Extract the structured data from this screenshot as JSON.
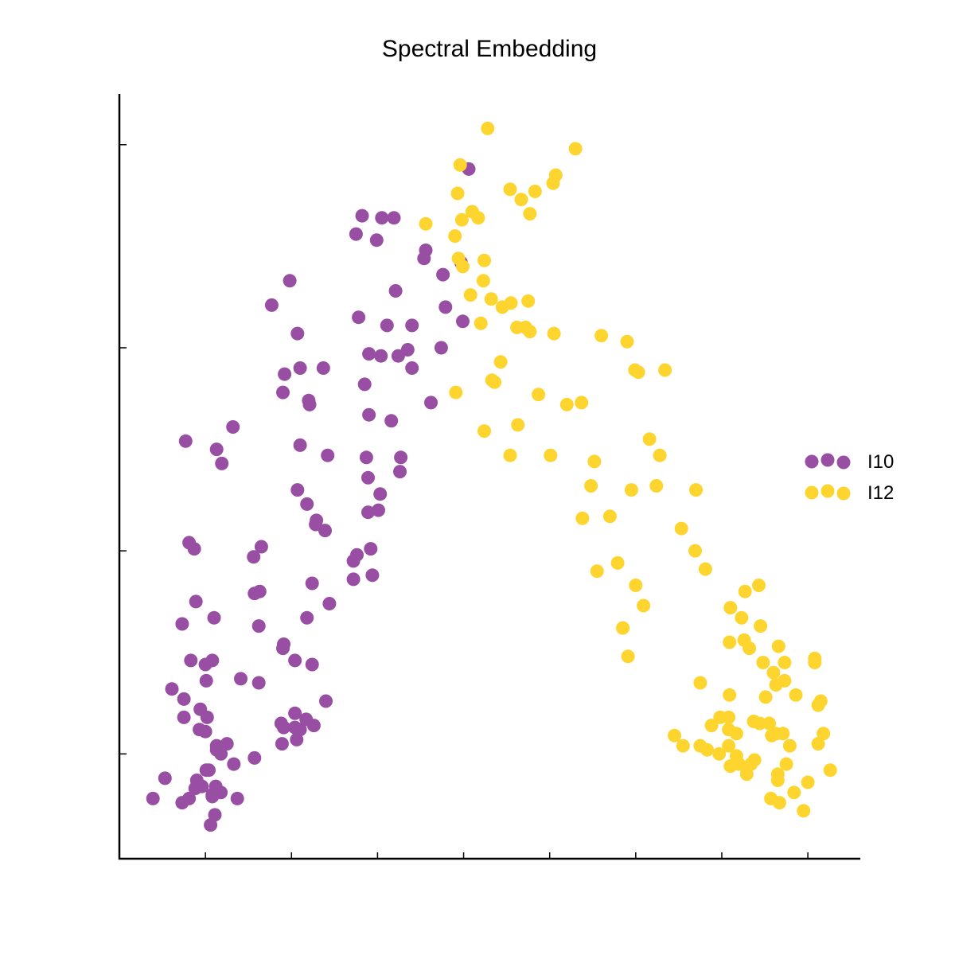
{
  "chart_data": {
    "type": "scatter",
    "title": "Spectral Embedding",
    "xlabel": "",
    "ylabel": "",
    "xlim": [
      -0.2,
      8.4
    ],
    "ylim": [
      -0.52,
      3.25
    ],
    "x_ticks": [
      0.8,
      1.8,
      2.8,
      3.8,
      4.8,
      5.8,
      6.8,
      7.8
    ],
    "y_ticks": [
      0,
      1,
      2,
      3
    ],
    "grid": false,
    "legend_position": "right",
    "series": [
      {
        "name": "I10",
        "color": "#984ea3",
        "points": [
          [
            0.19,
            -0.22
          ],
          [
            0.53,
            -0.24
          ],
          [
            0.61,
            -0.22
          ],
          [
            0.81,
            -0.08
          ],
          [
            0.76,
            -0.16
          ],
          [
            0.7,
            -0.13
          ],
          [
            0.88,
            -0.21
          ],
          [
            0.86,
            -0.35
          ],
          [
            0.91,
            -0.3
          ],
          [
            0.98,
            -0.19
          ],
          [
            0.84,
            -0.08
          ],
          [
            0.88,
            -0.2
          ],
          [
            0.92,
            -0.16
          ],
          [
            0.68,
            -0.17
          ],
          [
            1.17,
            -0.22
          ],
          [
            1.13,
            -0.05
          ],
          [
            1.05,
            0.05
          ],
          [
            0.98,
            0.0
          ],
          [
            0.93,
            0.04
          ],
          [
            0.73,
            0.12
          ],
          [
            0.93,
            0.02
          ],
          [
            0.8,
            0.11
          ],
          [
            0.82,
            0.18
          ],
          [
            0.74,
            0.22
          ],
          [
            0.55,
            0.18
          ],
          [
            0.55,
            0.27
          ],
          [
            0.81,
            0.36
          ],
          [
            0.41,
            0.32
          ],
          [
            0.33,
            -0.12
          ],
          [
            1.37,
            -0.02
          ],
          [
            1.69,
            0.05
          ],
          [
            1.84,
            0.2
          ],
          [
            1.68,
            0.15
          ],
          [
            1.71,
            0.13
          ],
          [
            1.86,
            0.07
          ],
          [
            1.84,
            0.13
          ],
          [
            1.9,
            0.12
          ],
          [
            2.06,
            0.14
          ],
          [
            1.97,
            0.17
          ],
          [
            2.2,
            0.26
          ],
          [
            1.84,
            0.46
          ],
          [
            2.04,
            0.44
          ],
          [
            1.42,
            0.35
          ],
          [
            1.7,
            0.52
          ],
          [
            1.71,
            0.54
          ],
          [
            0.63,
            0.46
          ],
          [
            0.8,
            0.44
          ],
          [
            1.42,
            0.63
          ],
          [
            1.21,
            0.37
          ],
          [
            0.88,
            0.46
          ],
          [
            0.9,
            0.67
          ],
          [
            0.69,
            0.75
          ],
          [
            0.53,
            0.64
          ],
          [
            1.37,
            0.79
          ],
          [
            1.43,
            0.8
          ],
          [
            0.67,
            1.01
          ],
          [
            0.61,
            1.04
          ],
          [
            1.36,
            0.97
          ],
          [
            1.45,
            1.02
          ],
          [
            2.04,
            0.84
          ],
          [
            1.98,
            0.67
          ],
          [
            2.24,
            0.74
          ],
          [
            2.52,
            0.86
          ],
          [
            2.74,
            0.88
          ],
          [
            2.52,
            0.95
          ],
          [
            2.56,
            0.98
          ],
          [
            2.72,
            1.01
          ],
          [
            2.69,
            1.19
          ],
          [
            2.08,
            1.13
          ],
          [
            2.19,
            1.1
          ],
          [
            2.81,
            1.2
          ],
          [
            2.69,
            1.36
          ],
          [
            2.67,
            1.46
          ],
          [
            2.83,
            1.28
          ],
          [
            2.7,
            1.67
          ],
          [
            2.65,
            1.82
          ],
          [
            3.06,
            1.39
          ],
          [
            3.07,
            1.46
          ],
          [
            2.96,
            1.64
          ],
          [
            2.84,
            1.96
          ],
          [
            3.42,
            1.73
          ],
          [
            3.2,
            1.9
          ],
          [
            3.04,
            1.96
          ],
          [
            2.7,
            1.97
          ],
          [
            3.15,
            1.99
          ],
          [
            3.79,
            2.13
          ],
          [
            3.59,
            2.2
          ],
          [
            3.77,
            2.42
          ],
          [
            3.86,
            2.88
          ],
          [
            0.99,
            1.43
          ],
          [
            1.12,
            1.61
          ],
          [
            0.57,
            1.54
          ],
          [
            0.93,
            1.5
          ],
          [
            1.7,
            1.78
          ],
          [
            1.87,
            1.3
          ],
          [
            1.9,
            1.52
          ],
          [
            1.72,
            1.87
          ],
          [
            2.0,
            1.74
          ],
          [
            1.9,
            1.9
          ],
          [
            2.09,
            1.15
          ],
          [
            1.98,
            1.23
          ],
          [
            2.22,
            1.47
          ],
          [
            1.57,
            2.21
          ],
          [
            1.87,
            2.07
          ],
          [
            2.01,
            1.72
          ],
          [
            2.17,
            1.9
          ],
          [
            2.62,
            2.65
          ],
          [
            2.85,
            2.64
          ],
          [
            3.36,
            2.48
          ],
          [
            3.34,
            2.44
          ],
          [
            3.56,
            2.36
          ],
          [
            1.78,
            2.33
          ],
          [
            2.55,
            2.56
          ],
          [
            2.79,
            2.53
          ],
          [
            2.58,
            2.15
          ],
          [
            2.91,
            2.11
          ],
          [
            2.99,
            2.64
          ],
          [
            3.01,
            2.28
          ],
          [
            3.2,
            2.11
          ],
          [
            3.54,
            2.0
          ]
        ]
      },
      {
        "name": "I12",
        "color": "#fed52f",
        "points": [
          [
            4.08,
            3.08
          ],
          [
            3.76,
            2.9
          ],
          [
            3.73,
            2.76
          ],
          [
            3.78,
            2.63
          ],
          [
            3.9,
            2.67
          ],
          [
            3.97,
            2.64
          ],
          [
            3.7,
            2.55
          ],
          [
            3.36,
            2.61
          ],
          [
            4.34,
            2.78
          ],
          [
            4.63,
            2.77
          ],
          [
            4.47,
            2.73
          ],
          [
            4.57,
            2.66
          ],
          [
            4.84,
            2.81
          ],
          [
            4.87,
            2.85
          ],
          [
            5.1,
            2.98
          ],
          [
            3.74,
            2.44
          ],
          [
            3.79,
            2.4
          ],
          [
            4.0,
            2.12
          ],
          [
            4.04,
            2.43
          ],
          [
            3.88,
            2.26
          ],
          [
            4.03,
            2.33
          ],
          [
            4.12,
            2.24
          ],
          [
            4.25,
            2.2
          ],
          [
            4.35,
            2.22
          ],
          [
            4.55,
            2.23
          ],
          [
            4.42,
            2.1
          ],
          [
            4.52,
            2.1
          ],
          [
            4.57,
            2.08
          ],
          [
            4.85,
            2.07
          ],
          [
            5.4,
            2.06
          ],
          [
            5.7,
            2.03
          ],
          [
            5.79,
            1.89
          ],
          [
            5.83,
            1.88
          ],
          [
            6.14,
            1.89
          ],
          [
            4.23,
            1.93
          ],
          [
            4.16,
            1.83
          ],
          [
            4.13,
            1.84
          ],
          [
            4.67,
            1.77
          ],
          [
            5.0,
            1.72
          ],
          [
            5.17,
            1.73
          ],
          [
            3.71,
            1.78
          ],
          [
            4.04,
            1.59
          ],
          [
            4.43,
            1.62
          ],
          [
            4.34,
            1.47
          ],
          [
            4.81,
            1.47
          ],
          [
            5.32,
            1.44
          ],
          [
            6.08,
            1.47
          ],
          [
            5.96,
            1.55
          ],
          [
            6.04,
            1.32
          ],
          [
            5.75,
            1.3
          ],
          [
            6.5,
            1.3
          ],
          [
            5.28,
            1.32
          ],
          [
            5.5,
            1.17
          ],
          [
            5.18,
            1.16
          ],
          [
            6.33,
            1.11
          ],
          [
            6.49,
            1.0
          ],
          [
            6.61,
            0.91
          ],
          [
            5.8,
            0.83
          ],
          [
            5.35,
            0.9
          ],
          [
            5.59,
            0.94
          ],
          [
            5.89,
            0.73
          ],
          [
            7.07,
            0.8
          ],
          [
            7.23,
            0.83
          ],
          [
            6.9,
            0.72
          ],
          [
            7.03,
            0.67
          ],
          [
            7.25,
            0.63
          ],
          [
            5.65,
            0.62
          ],
          [
            6.89,
            0.55
          ],
          [
            7.06,
            0.56
          ],
          [
            7.46,
            0.53
          ],
          [
            5.71,
            0.48
          ],
          [
            6.89,
            0.29
          ],
          [
            7.12,
            0.52
          ],
          [
            7.28,
            0.45
          ],
          [
            7.31,
            0.28
          ],
          [
            7.43,
            0.34
          ],
          [
            7.53,
            0.45
          ],
          [
            7.66,
            0.29
          ],
          [
            7.88,
            0.45
          ],
          [
            7.88,
            0.47
          ],
          [
            7.4,
            0.4
          ],
          [
            7.53,
            0.36
          ],
          [
            7.43,
            0.1
          ],
          [
            7.51,
            0.1
          ],
          [
            7.24,
            0.15
          ],
          [
            6.97,
            0.1
          ],
          [
            6.78,
            0.18
          ],
          [
            6.68,
            0.14
          ],
          [
            6.88,
            0.18
          ],
          [
            6.55,
            0.04
          ],
          [
            6.63,
            0.02
          ],
          [
            6.77,
            0.0
          ],
          [
            6.88,
            0.04
          ],
          [
            6.97,
            -0.01
          ],
          [
            6.88,
            0.12
          ],
          [
            7.09,
            -0.1
          ],
          [
            7.14,
            -0.05
          ],
          [
            7.18,
            -0.03
          ],
          [
            7.0,
            -0.05
          ],
          [
            6.9,
            -0.06
          ],
          [
            7.17,
            0.16
          ],
          [
            7.35,
            0.15
          ],
          [
            7.38,
            0.09
          ],
          [
            7.59,
            0.04
          ],
          [
            7.55,
            -0.05
          ],
          [
            7.45,
            -0.1
          ],
          [
            7.37,
            -0.22
          ],
          [
            7.45,
            -0.13
          ],
          [
            7.47,
            -0.24
          ],
          [
            7.64,
            -0.19
          ],
          [
            7.8,
            -0.14
          ],
          [
            7.75,
            -0.28
          ],
          [
            7.92,
            0.05
          ],
          [
            7.92,
            0.24
          ],
          [
            7.95,
            0.26
          ],
          [
            8.06,
            -0.08
          ],
          [
            7.98,
            0.1
          ],
          [
            6.25,
            0.09
          ],
          [
            6.35,
            0.04
          ],
          [
            6.55,
            0.35
          ]
        ]
      }
    ]
  }
}
